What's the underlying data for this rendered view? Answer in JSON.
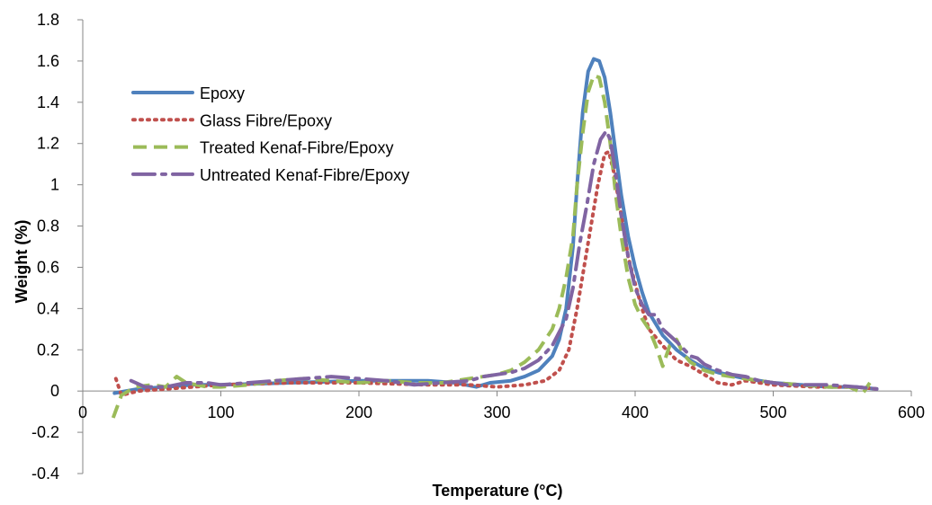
{
  "chart_data": {
    "type": "line",
    "xlabel": "Temperature (°C)",
    "ylabel": "Weight (%)",
    "xlim": [
      0,
      600
    ],
    "ylim": [
      -0.4,
      1.8
    ],
    "xticks": [
      0,
      100,
      200,
      300,
      400,
      500,
      600
    ],
    "xtick_labels": [
      "0",
      "100",
      "200",
      "300",
      "400",
      "500",
      "600"
    ],
    "yticks": [
      -0.4,
      -0.2,
      0,
      0.2,
      0.4,
      0.6,
      0.8,
      1,
      1.2,
      1.4,
      1.6,
      1.8
    ],
    "ytick_labels": [
      "-0.4",
      "-0.2",
      "0",
      "0.2",
      "0.4",
      "0.6",
      "0.8",
      "1",
      "1.2",
      "1.4",
      "1.6",
      "1.8"
    ],
    "grid": false,
    "legend_position": "top-left",
    "series": [
      {
        "name": "Epoxy",
        "color": "#4F81BD",
        "style": "solid",
        "points": [
          [
            23,
            -0.01
          ],
          [
            40,
            0.01
          ],
          [
            60,
            0.02
          ],
          [
            80,
            0.03
          ],
          [
            100,
            0.03
          ],
          [
            150,
            0.04
          ],
          [
            200,
            0.05
          ],
          [
            250,
            0.05
          ],
          [
            270,
            0.04
          ],
          [
            285,
            0.02
          ],
          [
            295,
            0.04
          ],
          [
            310,
            0.05
          ],
          [
            320,
            0.07
          ],
          [
            330,
            0.1
          ],
          [
            340,
            0.17
          ],
          [
            345,
            0.25
          ],
          [
            350,
            0.4
          ],
          [
            355,
            0.7
          ],
          [
            358,
            1.0
          ],
          [
            362,
            1.35
          ],
          [
            366,
            1.55
          ],
          [
            370,
            1.61
          ],
          [
            374,
            1.6
          ],
          [
            378,
            1.52
          ],
          [
            382,
            1.35
          ],
          [
            386,
            1.15
          ],
          [
            390,
            0.95
          ],
          [
            395,
            0.75
          ],
          [
            400,
            0.6
          ],
          [
            405,
            0.48
          ],
          [
            410,
            0.38
          ],
          [
            420,
            0.27
          ],
          [
            430,
            0.2
          ],
          [
            440,
            0.15
          ],
          [
            450,
            0.11
          ],
          [
            460,
            0.09
          ],
          [
            480,
            0.06
          ],
          [
            500,
            0.04
          ],
          [
            520,
            0.03
          ],
          [
            540,
            0.02
          ],
          [
            560,
            0.02
          ],
          [
            575,
            0.01
          ]
        ]
      },
      {
        "name": "Glass Fibre/Epoxy",
        "color": "#C0504D",
        "style": "dotted",
        "points": [
          [
            24,
            0.06
          ],
          [
            28,
            -0.02
          ],
          [
            40,
            0
          ],
          [
            60,
            0.01
          ],
          [
            80,
            0.02
          ],
          [
            100,
            0.03
          ],
          [
            150,
            0.04
          ],
          [
            200,
            0.04
          ],
          [
            250,
            0.03
          ],
          [
            280,
            0.03
          ],
          [
            300,
            0.02
          ],
          [
            320,
            0.03
          ],
          [
            335,
            0.05
          ],
          [
            345,
            0.1
          ],
          [
            352,
            0.2
          ],
          [
            358,
            0.4
          ],
          [
            363,
            0.6
          ],
          [
            368,
            0.8
          ],
          [
            373,
            1.0
          ],
          [
            378,
            1.15
          ],
          [
            381,
            1.16
          ],
          [
            385,
            1.05
          ],
          [
            390,
            0.85
          ],
          [
            395,
            0.65
          ],
          [
            400,
            0.52
          ],
          [
            405,
            0.4
          ],
          [
            410,
            0.3
          ],
          [
            420,
            0.22
          ],
          [
            430,
            0.15
          ],
          [
            440,
            0.12
          ],
          [
            450,
            0.08
          ],
          [
            460,
            0.04
          ],
          [
            470,
            0.03
          ],
          [
            480,
            0.05
          ],
          [
            500,
            0.03
          ],
          [
            530,
            0.02
          ],
          [
            560,
            0.02
          ],
          [
            575,
            0.01
          ]
        ]
      },
      {
        "name": "Treated Kenaf-Fibre/Epoxy",
        "color": "#9BBB59",
        "style": "dashed",
        "points": [
          [
            22,
            -0.13
          ],
          [
            28,
            -0.02
          ],
          [
            38,
            0.02
          ],
          [
            50,
            0.03
          ],
          [
            60,
            0.02
          ],
          [
            68,
            0.07
          ],
          [
            75,
            0.04
          ],
          [
            90,
            0.02
          ],
          [
            100,
            0.02
          ],
          [
            120,
            0.03
          ],
          [
            140,
            0.05
          ],
          [
            160,
            0.06
          ],
          [
            180,
            0.05
          ],
          [
            200,
            0.04
          ],
          [
            220,
            0.05
          ],
          [
            240,
            0.04
          ],
          [
            260,
            0.04
          ],
          [
            280,
            0.06
          ],
          [
            300,
            0.08
          ],
          [
            310,
            0.1
          ],
          [
            320,
            0.14
          ],
          [
            330,
            0.2
          ],
          [
            340,
            0.3
          ],
          [
            345,
            0.4
          ],
          [
            350,
            0.55
          ],
          [
            355,
            0.75
          ],
          [
            358,
            1.0
          ],
          [
            362,
            1.25
          ],
          [
            366,
            1.45
          ],
          [
            370,
            1.53
          ],
          [
            374,
            1.52
          ],
          [
            378,
            1.4
          ],
          [
            382,
            1.2
          ],
          [
            386,
            0.95
          ],
          [
            390,
            0.75
          ],
          [
            395,
            0.55
          ],
          [
            400,
            0.42
          ],
          [
            405,
            0.35
          ],
          [
            410,
            0.3
          ],
          [
            415,
            0.22
          ],
          [
            420,
            0.12
          ],
          [
            425,
            0.22
          ],
          [
            430,
            0.25
          ],
          [
            435,
            0.18
          ],
          [
            440,
            0.14
          ],
          [
            450,
            0.1
          ],
          [
            460,
            0.08
          ],
          [
            480,
            0.06
          ],
          [
            500,
            0.04
          ],
          [
            520,
            0.03
          ],
          [
            540,
            0.02
          ],
          [
            555,
            0.02
          ],
          [
            565,
            -0.01
          ],
          [
            570,
            0.04
          ]
        ]
      },
      {
        "name": "Untreated Kenaf-Fibre/Epoxy",
        "color": "#8064A2",
        "style": "longdash",
        "points": [
          [
            35,
            0.05
          ],
          [
            45,
            0.02
          ],
          [
            60,
            0.02
          ],
          [
            75,
            0.04
          ],
          [
            90,
            0.04
          ],
          [
            100,
            0.03
          ],
          [
            120,
            0.04
          ],
          [
            140,
            0.05
          ],
          [
            160,
            0.06
          ],
          [
            180,
            0.07
          ],
          [
            200,
            0.06
          ],
          [
            220,
            0.05
          ],
          [
            240,
            0.03
          ],
          [
            260,
            0.04
          ],
          [
            280,
            0.05
          ],
          [
            290,
            0.07
          ],
          [
            300,
            0.08
          ],
          [
            310,
            0.09
          ],
          [
            320,
            0.11
          ],
          [
            330,
            0.15
          ],
          [
            340,
            0.22
          ],
          [
            350,
            0.35
          ],
          [
            355,
            0.5
          ],
          [
            360,
            0.72
          ],
          [
            365,
            0.9
          ],
          [
            370,
            1.1
          ],
          [
            375,
            1.22
          ],
          [
            379,
            1.26
          ],
          [
            382,
            1.22
          ],
          [
            386,
            1.05
          ],
          [
            390,
            0.85
          ],
          [
            395,
            0.65
          ],
          [
            400,
            0.5
          ],
          [
            405,
            0.42
          ],
          [
            410,
            0.37
          ],
          [
            415,
            0.37
          ],
          [
            420,
            0.3
          ],
          [
            430,
            0.24
          ],
          [
            440,
            0.17
          ],
          [
            445,
            0.16
          ],
          [
            450,
            0.13
          ],
          [
            460,
            0.1
          ],
          [
            470,
            0.08
          ],
          [
            480,
            0.07
          ],
          [
            490,
            0.05
          ],
          [
            500,
            0.04
          ],
          [
            510,
            0.03
          ],
          [
            520,
            0.03
          ],
          [
            540,
            0.03
          ],
          [
            560,
            0.02
          ],
          [
            575,
            0.01
          ]
        ]
      }
    ]
  }
}
